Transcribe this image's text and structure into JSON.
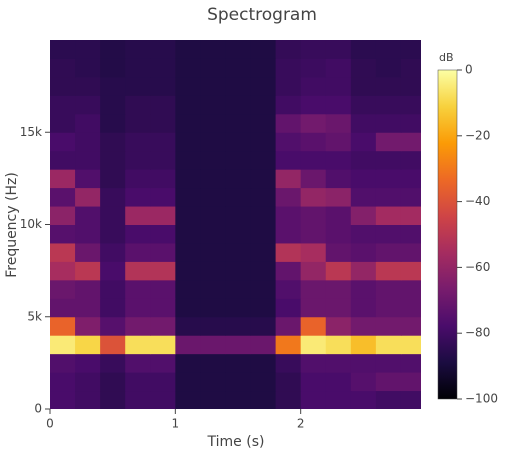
{
  "chart_data": {
    "type": "heatmap",
    "title": "Spectrogram",
    "x_label": "Time (s)",
    "y_label": "Frequency (Hz)",
    "x": [
      0.1,
      0.3,
      0.5,
      0.7,
      0.9,
      1.1,
      1.3,
      1.5,
      1.7,
      1.9,
      2.1,
      2.3,
      2.5,
      2.7,
      2.9
    ],
    "y": [
      500,
      1500,
      2500,
      3500,
      4500,
      5500,
      6500,
      7500,
      8500,
      9500,
      10500,
      11500,
      12500,
      13500,
      14500,
      15500,
      16500,
      17500,
      18500,
      19500
    ],
    "z": [
      [
        -78,
        -80,
        -84,
        -80,
        -80,
        -88,
        -88,
        -88,
        -88,
        -84,
        -78,
        -78,
        -78,
        -80,
        -80
      ],
      [
        -78,
        -80,
        -84,
        -80,
        -80,
        -88,
        -88,
        -88,
        -88,
        -84,
        -78,
        -78,
        -75,
        -72,
        -72
      ],
      [
        -76,
        -78,
        -82,
        -76,
        -76,
        -88,
        -88,
        -88,
        -88,
        -82,
        -76,
        -76,
        -76,
        -76,
        -76
      ],
      [
        -5,
        -10,
        -40,
        -8,
        -8,
        -70,
        -70,
        -70,
        -70,
        -30,
        -5,
        -8,
        -15,
        -8,
        -8
      ],
      [
        -35,
        -65,
        -75,
        -68,
        -68,
        -86,
        -86,
        -86,
        -86,
        -70,
        -35,
        -62,
        -68,
        -68,
        -68
      ],
      [
        -72,
        -72,
        -80,
        -74,
        -74,
        -88,
        -88,
        -88,
        -88,
        -78,
        -70,
        -70,
        -74,
        -72,
        -72
      ],
      [
        -70,
        -72,
        -80,
        -74,
        -74,
        -88,
        -88,
        -88,
        -88,
        -76,
        -70,
        -70,
        -74,
        -72,
        -72
      ],
      [
        -55,
        -50,
        -78,
        -52,
        -52,
        -88,
        -88,
        -88,
        -88,
        -72,
        -60,
        -50,
        -60,
        -50,
        -50
      ],
      [
        -50,
        -70,
        -80,
        -74,
        -74,
        -88,
        -88,
        -88,
        -88,
        -52,
        -55,
        -72,
        -74,
        -72,
        -72
      ],
      [
        -75,
        -76,
        -82,
        -78,
        -78,
        -88,
        -88,
        -88,
        -88,
        -74,
        -72,
        -74,
        -76,
        -76,
        -76
      ],
      [
        -62,
        -76,
        -82,
        -58,
        -58,
        -88,
        -88,
        -88,
        -88,
        -74,
        -72,
        -74,
        -64,
        -56,
        -56
      ],
      [
        -74,
        -60,
        -82,
        -78,
        -78,
        -88,
        -88,
        -88,
        -88,
        -70,
        -60,
        -62,
        -76,
        -76,
        -76
      ],
      [
        -58,
        -76,
        -84,
        -80,
        -80,
        -88,
        -88,
        -88,
        -88,
        -60,
        -70,
        -76,
        -78,
        -78,
        -78
      ],
      [
        -80,
        -80,
        -84,
        -82,
        -82,
        -88,
        -88,
        -88,
        -88,
        -78,
        -78,
        -78,
        -80,
        -80,
        -80
      ],
      [
        -78,
        -80,
        -84,
        -82,
        -82,
        -88,
        -88,
        -88,
        -88,
        -76,
        -74,
        -72,
        -78,
        -68,
        -68
      ],
      [
        -82,
        -80,
        -86,
        -84,
        -84,
        -88,
        -88,
        -88,
        -88,
        -72,
        -68,
        -70,
        -80,
        -80,
        -80
      ],
      [
        -82,
        -82,
        -86,
        -84,
        -84,
        -88,
        -88,
        -88,
        -88,
        -80,
        -78,
        -78,
        -82,
        -82,
        -82
      ],
      [
        -84,
        -84,
        -86,
        -86,
        -86,
        -88,
        -88,
        -88,
        -88,
        -82,
        -80,
        -80,
        -84,
        -84,
        -84
      ],
      [
        -84,
        -85,
        -87,
        -86,
        -86,
        -88,
        -88,
        -88,
        -88,
        -82,
        -81,
        -80,
        -84,
        -85,
        -84
      ],
      [
        -85,
        -85,
        -87,
        -86,
        -86,
        -88,
        -88,
        -88,
        -88,
        -83,
        -82,
        -82,
        -85,
        -85,
        -85
      ]
    ],
    "xlim": [
      0,
      2.96
    ],
    "ylim": [
      0,
      20000
    ],
    "xticks": [
      0,
      1,
      2
    ],
    "yticks": [
      0,
      {
        "value": 5000,
        "label": "5k"
      },
      {
        "value": 10000,
        "label": "10k"
      },
      {
        "value": 15000,
        "label": "15k"
      }
    ],
    "colorbar_title": "dB",
    "zlim": [
      -100,
      0
    ],
    "zticks": [
      0,
      {
        "value": -20,
        "label": "−20"
      },
      {
        "value": -40,
        "label": "−40"
      },
      {
        "value": -60,
        "label": "−60"
      },
      {
        "value": -80,
        "label": "−80"
      },
      {
        "value": -100,
        "label": "−100"
      }
    ],
    "colorscale": [
      "#000004",
      "#1b0c41",
      "#4a0c6b",
      "#781c6d",
      "#a52c60",
      "#cf4446",
      "#ed6925",
      "#fb9b06",
      "#f7d13d",
      "#fcffa4"
    ]
  }
}
